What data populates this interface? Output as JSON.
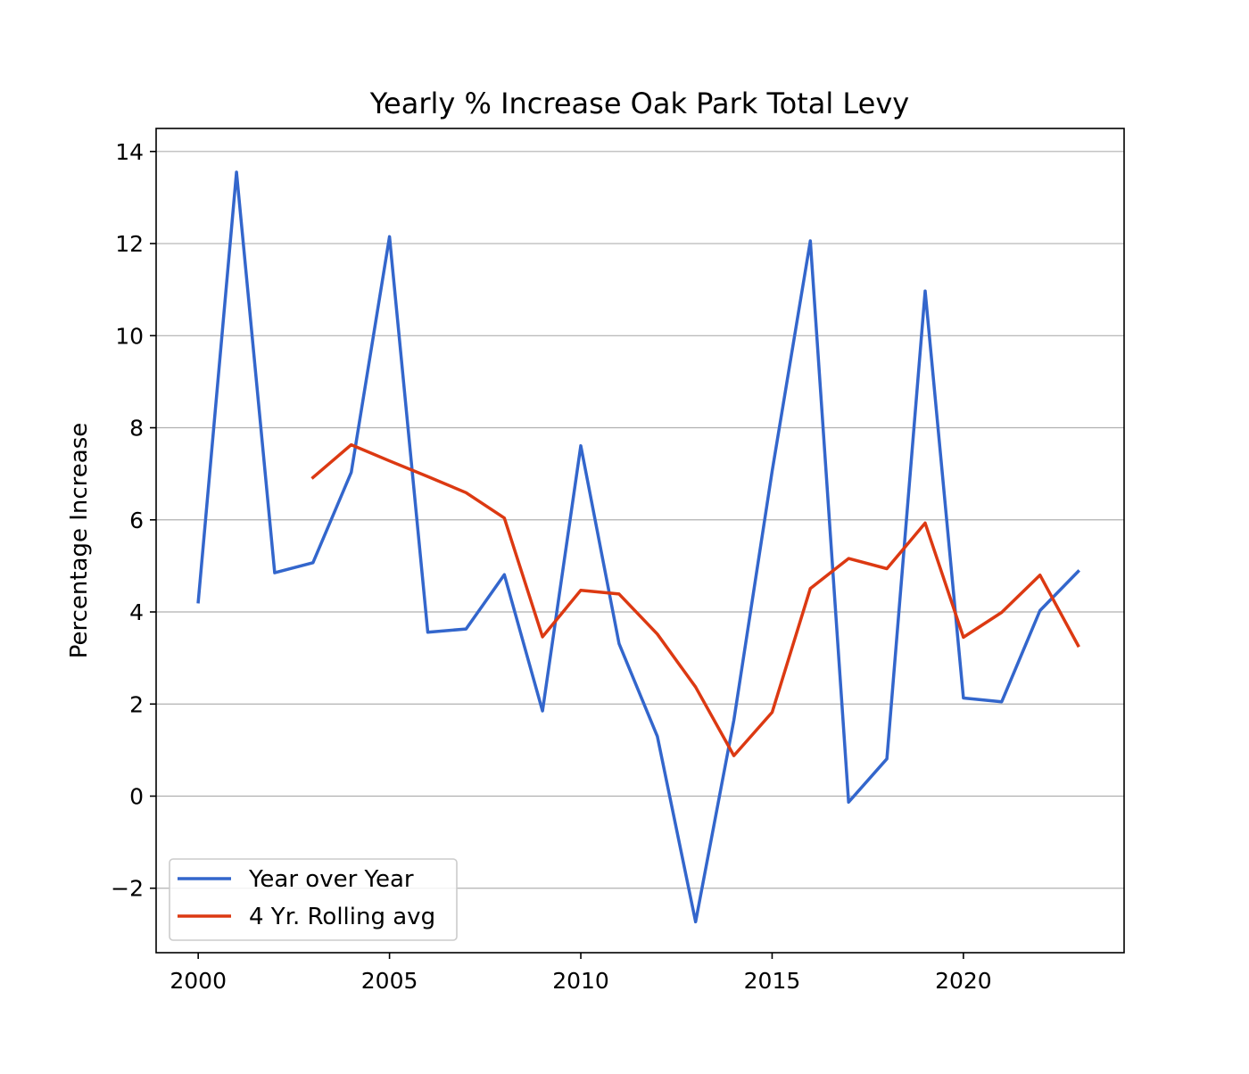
{
  "chart_data": {
    "type": "line",
    "title": "Yearly % Increase Oak Park Total Levy",
    "xlabel": "",
    "ylabel": "Percentage Increase",
    "xlim": [
      1998.9,
      2024.2
    ],
    "ylim": [
      -3.4,
      14.5
    ],
    "x_ticks": [
      2000,
      2005,
      2010,
      2015,
      2020
    ],
    "y_ticks": [
      -2,
      0,
      2,
      4,
      6,
      8,
      10,
      12,
      14
    ],
    "y_tick_labels": [
      "−2",
      "0",
      "2",
      "4",
      "6",
      "8",
      "10",
      "12",
      "14"
    ],
    "grid": "horizontal",
    "legend_position": "lower-left",
    "series": [
      {
        "name": "Year over Year",
        "color": "#3366cc",
        "x": [
          2000,
          2001,
          2002,
          2003,
          2004,
          2005,
          2006,
          2007,
          2008,
          2009,
          2010,
          2011,
          2012,
          2013,
          2014,
          2015,
          2016,
          2017,
          2018,
          2019,
          2020,
          2021,
          2022,
          2023
        ],
        "values": [
          4.22,
          13.55,
          4.85,
          5.07,
          7.03,
          12.15,
          3.56,
          3.63,
          4.81,
          1.85,
          7.61,
          3.31,
          1.3,
          -2.73,
          1.65,
          7.06,
          12.06,
          -0.13,
          0.81,
          10.97,
          2.13,
          2.05,
          4.03,
          4.88
        ]
      },
      {
        "name": "4 Yr. Rolling avg",
        "color": "#dc3912",
        "x": [
          2003,
          2004,
          2005,
          2006,
          2007,
          2008,
          2009,
          2010,
          2011,
          2012,
          2013,
          2014,
          2015,
          2016,
          2017,
          2018,
          2019,
          2020,
          2021,
          2022,
          2023
        ],
        "values": [
          6.92,
          7.63,
          7.28,
          6.94,
          6.59,
          6.04,
          3.46,
          4.47,
          4.39,
          3.52,
          2.37,
          0.88,
          1.82,
          4.51,
          5.16,
          4.94,
          5.93,
          3.45,
          3.99,
          4.8,
          3.27
        ]
      }
    ]
  }
}
